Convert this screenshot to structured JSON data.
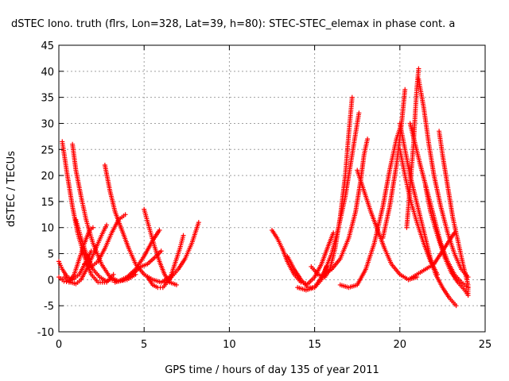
{
  "chart_data": {
    "type": "scatter",
    "title": "dSTEC Iono. truth (flrs, Lon=328, Lat=39, h=80): STEC-STEC_elemax in phase cont. a",
    "xlabel": "GPS time / hours of day 135 of year 2011",
    "ylabel": "dSTEC  / TECUs",
    "xlim": [
      0,
      25
    ],
    "ylim": [
      -10,
      45
    ],
    "xticks": [
      0,
      5,
      10,
      15,
      20,
      25
    ],
    "yticks": [
      -10,
      -5,
      0,
      5,
      10,
      15,
      20,
      25,
      30,
      35,
      40,
      45
    ],
    "grid": true,
    "marker": "+",
    "color": "#ff0000",
    "series": [
      {
        "points": [
          [
            0.0,
            3.5
          ],
          [
            0.2,
            2.0
          ],
          [
            0.5,
            0.5
          ],
          [
            0.8,
            0.0
          ],
          [
            1.2,
            1.0
          ],
          [
            1.6,
            3.5
          ],
          [
            1.9,
            5.5
          ]
        ]
      },
      {
        "points": [
          [
            0.2,
            26.5
          ],
          [
            0.5,
            20.0
          ],
          [
            0.8,
            14.0
          ],
          [
            1.1,
            9.0
          ],
          [
            1.5,
            4.5
          ],
          [
            1.9,
            1.0
          ],
          [
            2.3,
            -0.5
          ],
          [
            2.8,
            -0.5
          ],
          [
            3.2,
            1.0
          ]
        ]
      },
      {
        "points": [
          [
            0.0,
            0.5
          ],
          [
            0.3,
            -0.3
          ],
          [
            0.6,
            -0.5
          ],
          [
            0.9,
            1.0
          ],
          [
            1.2,
            4.0
          ],
          [
            1.5,
            7.0
          ],
          [
            1.8,
            9.5
          ],
          [
            2.0,
            10.0
          ]
        ]
      },
      {
        "points": [
          [
            0.8,
            26.0
          ],
          [
            1.0,
            21.0
          ],
          [
            1.3,
            16.0
          ],
          [
            1.6,
            11.5
          ],
          [
            2.0,
            7.0
          ],
          [
            2.5,
            3.0
          ],
          [
            3.0,
            0.5
          ],
          [
            3.5,
            -0.3
          ],
          [
            4.0,
            0.0
          ],
          [
            4.5,
            1.0
          ]
        ]
      },
      {
        "points": [
          [
            0.3,
            0.5
          ],
          [
            0.7,
            -0.5
          ],
          [
            1.0,
            -0.8
          ],
          [
            1.3,
            0.0
          ],
          [
            1.7,
            2.5
          ],
          [
            2.1,
            5.5
          ],
          [
            2.5,
            8.5
          ],
          [
            2.8,
            10.5
          ]
        ]
      },
      {
        "points": [
          [
            1.0,
            11.5
          ],
          [
            1.3,
            8.0
          ],
          [
            1.6,
            5.0
          ],
          [
            2.0,
            2.0
          ],
          [
            2.4,
            0.5
          ],
          [
            2.8,
            -0.3
          ]
        ]
      },
      {
        "points": [
          [
            1.5,
            3.0
          ],
          [
            1.9,
            2.5
          ],
          [
            2.3,
            3.5
          ],
          [
            2.7,
            6.0
          ],
          [
            3.1,
            9.0
          ],
          [
            3.5,
            11.5
          ],
          [
            3.9,
            12.5
          ]
        ]
      },
      {
        "points": [
          [
            2.7,
            22.0
          ],
          [
            3.0,
            17.0
          ],
          [
            3.3,
            13.0
          ],
          [
            3.7,
            9.5
          ],
          [
            4.1,
            6.0
          ],
          [
            4.5,
            3.0
          ],
          [
            5.0,
            1.0
          ],
          [
            5.5,
            0.0
          ],
          [
            6.0,
            -0.5
          ],
          [
            6.5,
            0.5
          ]
        ]
      },
      {
        "points": [
          [
            3.0,
            0.0
          ],
          [
            3.5,
            -0.3
          ],
          [
            4.0,
            0.5
          ],
          [
            4.5,
            2.0
          ],
          [
            5.0,
            4.5
          ],
          [
            5.5,
            7.5
          ],
          [
            5.9,
            9.5
          ]
        ]
      },
      {
        "points": [
          [
            3.3,
            -0.5
          ],
          [
            3.8,
            0.0
          ],
          [
            4.3,
            1.0
          ],
          [
            4.8,
            2.5
          ],
          [
            5.2,
            3.0
          ],
          [
            5.7,
            4.5
          ],
          [
            6.0,
            5.5
          ]
        ]
      },
      {
        "points": [
          [
            5.0,
            13.5
          ],
          [
            5.3,
            10.0
          ],
          [
            5.6,
            6.5
          ],
          [
            5.9,
            3.5
          ],
          [
            6.2,
            1.0
          ],
          [
            6.5,
            -0.5
          ],
          [
            6.9,
            -1.0
          ]
        ]
      },
      {
        "points": [
          [
            5.2,
            0.5
          ],
          [
            5.5,
            -1.0
          ],
          [
            5.8,
            -1.5
          ],
          [
            6.1,
            -1.5
          ],
          [
            6.5,
            0.0
          ],
          [
            6.8,
            3.0
          ],
          [
            7.1,
            6.0
          ],
          [
            7.3,
            8.5
          ]
        ]
      },
      {
        "points": [
          [
            6.2,
            -0.5
          ],
          [
            6.6,
            0.5
          ],
          [
            7.0,
            2.0
          ],
          [
            7.4,
            4.0
          ],
          [
            7.8,
            7.0
          ],
          [
            8.2,
            11.0
          ]
        ]
      },
      {
        "points": [
          [
            12.5,
            9.5
          ],
          [
            12.8,
            8.0
          ],
          [
            13.1,
            6.0
          ],
          [
            13.4,
            3.5
          ],
          [
            13.8,
            1.0
          ],
          [
            14.2,
            -0.5
          ],
          [
            14.6,
            -0.8
          ],
          [
            15.0,
            0.5
          ],
          [
            15.4,
            3.0
          ],
          [
            15.8,
            6.5
          ],
          [
            16.1,
            9.0
          ]
        ]
      },
      {
        "points": [
          [
            13.4,
            4.5
          ],
          [
            13.8,
            2.0
          ],
          [
            14.2,
            0.0
          ],
          [
            14.6,
            -1.5
          ],
          [
            15.0,
            -1.5
          ],
          [
            15.4,
            0.0
          ],
          [
            15.7,
            2.5
          ]
        ]
      },
      {
        "points": [
          [
            14.8,
            2.5
          ],
          [
            15.2,
            1.0
          ],
          [
            15.6,
            0.5
          ],
          [
            15.9,
            2.0
          ],
          [
            16.2,
            6.0
          ],
          [
            16.5,
            12.0
          ],
          [
            16.8,
            20.0
          ],
          [
            17.0,
            28.0
          ],
          [
            17.2,
            35.0
          ]
        ]
      },
      {
        "points": [
          [
            14.0,
            -1.5
          ],
          [
            14.5,
            -2.0
          ],
          [
            15.0,
            -1.5
          ],
          [
            15.5,
            1.0
          ],
          [
            16.0,
            5.0
          ],
          [
            16.4,
            10.0
          ],
          [
            16.8,
            16.0
          ],
          [
            17.1,
            22.0
          ],
          [
            17.4,
            28.0
          ],
          [
            17.6,
            32.0
          ]
        ]
      },
      {
        "points": [
          [
            15.5,
            1.0
          ],
          [
            16.0,
            2.0
          ],
          [
            16.5,
            4.0
          ],
          [
            17.0,
            8.0
          ],
          [
            17.4,
            13.0
          ],
          [
            17.7,
            19.0
          ],
          [
            17.9,
            24.0
          ],
          [
            18.1,
            27.0
          ]
        ]
      },
      {
        "points": [
          [
            17.5,
            21.0
          ],
          [
            17.9,
            17.0
          ],
          [
            18.3,
            13.0
          ],
          [
            18.7,
            9.5
          ],
          [
            19.1,
            6.0
          ],
          [
            19.5,
            3.0
          ],
          [
            20.0,
            1.0
          ],
          [
            20.5,
            0.0
          ],
          [
            21.0,
            0.5
          ]
        ]
      },
      {
        "points": [
          [
            16.5,
            -1.0
          ],
          [
            17.0,
            -1.5
          ],
          [
            17.5,
            -1.0
          ],
          [
            18.0,
            2.0
          ],
          [
            18.5,
            7.0
          ],
          [
            19.0,
            14.0
          ],
          [
            19.4,
            21.0
          ],
          [
            19.8,
            27.0
          ],
          [
            20.1,
            30.0
          ]
        ]
      },
      {
        "points": [
          [
            20.0,
            30.0
          ],
          [
            20.3,
            25.0
          ],
          [
            20.6,
            20.0
          ],
          [
            20.9,
            16.0
          ],
          [
            21.2,
            12.0
          ],
          [
            21.5,
            8.0
          ],
          [
            21.8,
            4.0
          ],
          [
            22.1,
            1.0
          ],
          [
            22.5,
            -1.5
          ],
          [
            22.9,
            -3.5
          ],
          [
            23.3,
            -5.0
          ]
        ]
      },
      {
        "points": [
          [
            19.0,
            8.0
          ],
          [
            19.4,
            14.0
          ],
          [
            19.8,
            22.0
          ],
          [
            20.1,
            30.0
          ],
          [
            20.3,
            36.5
          ]
        ]
      },
      {
        "points": [
          [
            20.0,
            25.0
          ],
          [
            20.3,
            20.0
          ],
          [
            20.6,
            15.5
          ],
          [
            21.0,
            11.0
          ],
          [
            21.4,
            7.0
          ],
          [
            21.8,
            3.5
          ],
          [
            22.2,
            1.0
          ]
        ]
      },
      {
        "points": [
          [
            20.4,
            10.0
          ],
          [
            20.6,
            18.0
          ],
          [
            20.8,
            26.0
          ],
          [
            20.9,
            32.0
          ],
          [
            21.0,
            37.0
          ],
          [
            21.1,
            40.5
          ]
        ]
      },
      {
        "points": [
          [
            20.6,
            30.0
          ],
          [
            20.9,
            26.0
          ],
          [
            21.2,
            22.0
          ],
          [
            21.6,
            17.0
          ],
          [
            22.0,
            12.0
          ],
          [
            22.4,
            7.0
          ],
          [
            22.8,
            3.5
          ],
          [
            23.2,
            1.0
          ],
          [
            23.6,
            -0.5
          ],
          [
            24.0,
            -1.5
          ]
        ]
      },
      {
        "points": [
          [
            21.1,
            38.5
          ],
          [
            21.4,
            33.0
          ],
          [
            21.7,
            26.0
          ],
          [
            22.0,
            20.0
          ],
          [
            22.4,
            14.0
          ],
          [
            22.8,
            9.0
          ],
          [
            23.2,
            5.0
          ],
          [
            23.6,
            2.0
          ],
          [
            24.0,
            0.5
          ]
        ]
      },
      {
        "points": [
          [
            20.5,
            0.0
          ],
          [
            21.0,
            1.0
          ],
          [
            21.5,
            2.0
          ],
          [
            22.0,
            3.0
          ],
          [
            22.4,
            5.0
          ],
          [
            22.8,
            7.0
          ],
          [
            23.2,
            9.0
          ]
        ]
      },
      {
        "points": [
          [
            22.3,
            28.5
          ],
          [
            22.5,
            24.0
          ],
          [
            22.7,
            20.0
          ],
          [
            22.9,
            16.0
          ],
          [
            23.1,
            12.0
          ],
          [
            23.4,
            7.5
          ],
          [
            23.7,
            3.0
          ],
          [
            24.0,
            -1.0
          ],
          [
            24.0,
            -3.0
          ]
        ]
      },
      {
        "points": [
          [
            21.5,
            18.0
          ],
          [
            21.8,
            13.0
          ],
          [
            22.2,
            8.5
          ],
          [
            22.6,
            4.5
          ],
          [
            23.0,
            1.5
          ],
          [
            23.4,
            -0.5
          ],
          [
            23.8,
            -2.0
          ],
          [
            24.0,
            -3.0
          ]
        ]
      }
    ]
  }
}
